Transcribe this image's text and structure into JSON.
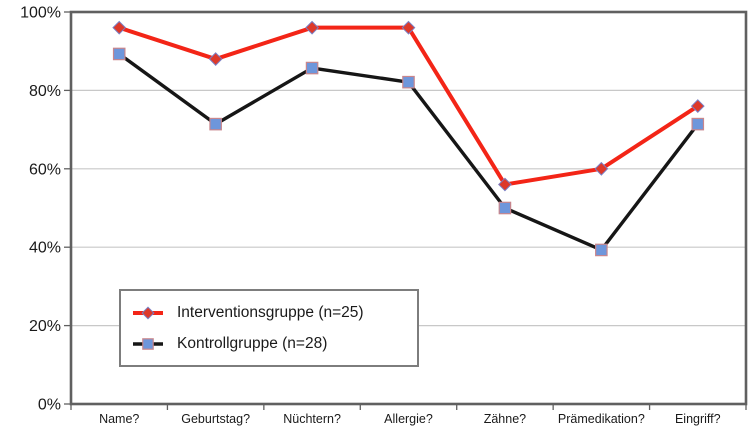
{
  "chart_data": {
    "type": "line",
    "title": "",
    "xlabel": "",
    "ylabel": "",
    "categories": [
      "Name?",
      "Geburtstag?",
      "Nüchtern?",
      "Allergie?",
      "Zähne?",
      "Prämedikation?",
      "Eingriff?"
    ],
    "series": [
      {
        "name": "Interventionsgruppe (n=25)",
        "values": [
          96,
          88,
          96,
          96,
          56,
          60,
          76
        ],
        "color": "#f32517",
        "marker": "diamond",
        "marker_fill": "#dd392a",
        "marker_stroke": "#7a7fc4"
      },
      {
        "name": "Kontrollgruppe (n=28)",
        "values": [
          89.3,
          71.4,
          85.7,
          82.1,
          50,
          39.3,
          71.4
        ],
        "color": "#161616",
        "marker": "square",
        "marker_fill": "#6e96db",
        "marker_stroke": "#c9868c"
      }
    ],
    "ylim": [
      0,
      100
    ],
    "y_tick_values": [
      0,
      20,
      40,
      60,
      80,
      100
    ],
    "y_tick_labels": [
      "0%",
      "20%",
      "40%",
      "60%",
      "80%",
      "100%"
    ],
    "grid": true,
    "legend_position": "inside-bottom-left"
  },
  "colors": {
    "grid": "#c8c8c8",
    "frame": "#606060",
    "text": "#1a1a1a",
    "background": "#ffffff"
  }
}
